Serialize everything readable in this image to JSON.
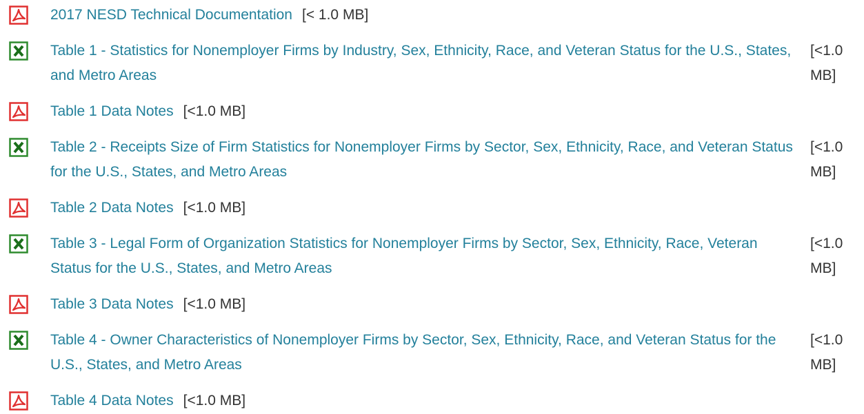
{
  "items": [
    {
      "icon": "pdf",
      "title": "2017 NESD Technical Documentation",
      "size": "[< 1.0 MB]"
    },
    {
      "icon": "excel",
      "title": "Table 1 - Statistics for Nonemployer Firms by Industry, Sex, Ethnicity, Race, and Veteran Status for the U.S., States, and Metro Areas",
      "size": "[<1.0 MB]"
    },
    {
      "icon": "pdf",
      "title": "Table 1 Data Notes",
      "size": "[<1.0 MB]"
    },
    {
      "icon": "excel",
      "title": "Table 2 - Receipts Size of Firm Statistics for Nonemployer Firms by Sector, Sex, Ethnicity, Race, and Veteran Status for the U.S., States, and Metro Areas",
      "size": "[<1.0 MB]"
    },
    {
      "icon": "pdf",
      "title": "Table 2 Data Notes",
      "size": "[<1.0 MB]"
    },
    {
      "icon": "excel",
      "title": "Table 3 - Legal Form of Organization Statistics for Nonemployer Firms by Sector, Sex, Ethnicity, Race, Veteran Status for the U.S., States, and Metro Areas",
      "size": "[<1.0 MB]"
    },
    {
      "icon": "pdf",
      "title": "Table 3 Data Notes",
      "size": "[<1.0 MB]"
    },
    {
      "icon": "excel",
      "title": "Table 4 - Owner Characteristics of Nonemployer Firms by Sector, Sex, Ethnicity, Race, and Veteran Status for the U.S., States, and Metro Areas",
      "size": "[<1.0 MB]"
    },
    {
      "icon": "pdf",
      "title": "Table 4 Data Notes",
      "size": "[<1.0 MB]"
    }
  ]
}
